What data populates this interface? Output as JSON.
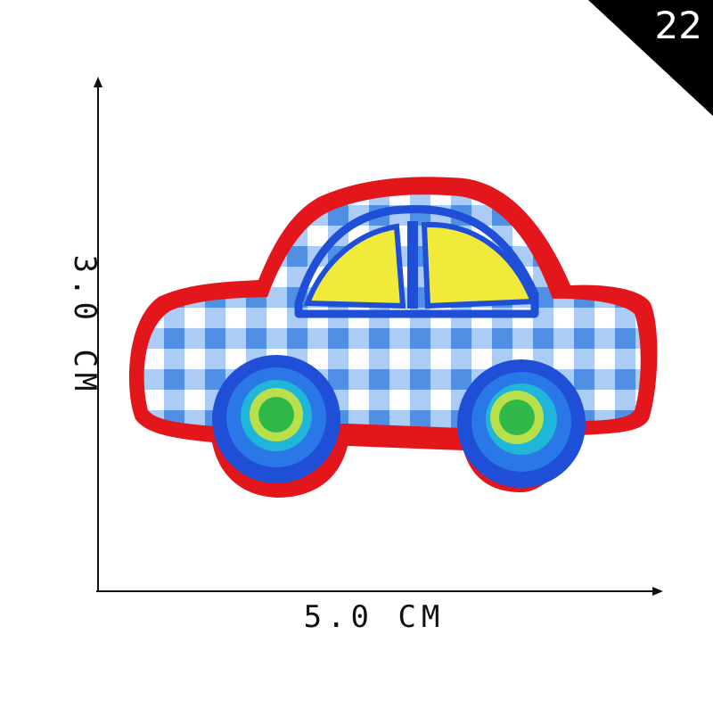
{
  "badge": {
    "number": "22"
  },
  "dimensions": {
    "width_label": "5.0 CM",
    "height_label": "3.0 CM"
  },
  "patch": {
    "subject": "car",
    "colors": {
      "border": "#e3161c",
      "body_check_light": "#ffffff",
      "body_check_dark": "#6fa3e6",
      "windows": "#f0ea3a",
      "trim": "#1e4fd6",
      "wheel_ring": "#2a77e8",
      "hub": "#2fb84a",
      "hub_ring": "#b9e04a"
    }
  }
}
